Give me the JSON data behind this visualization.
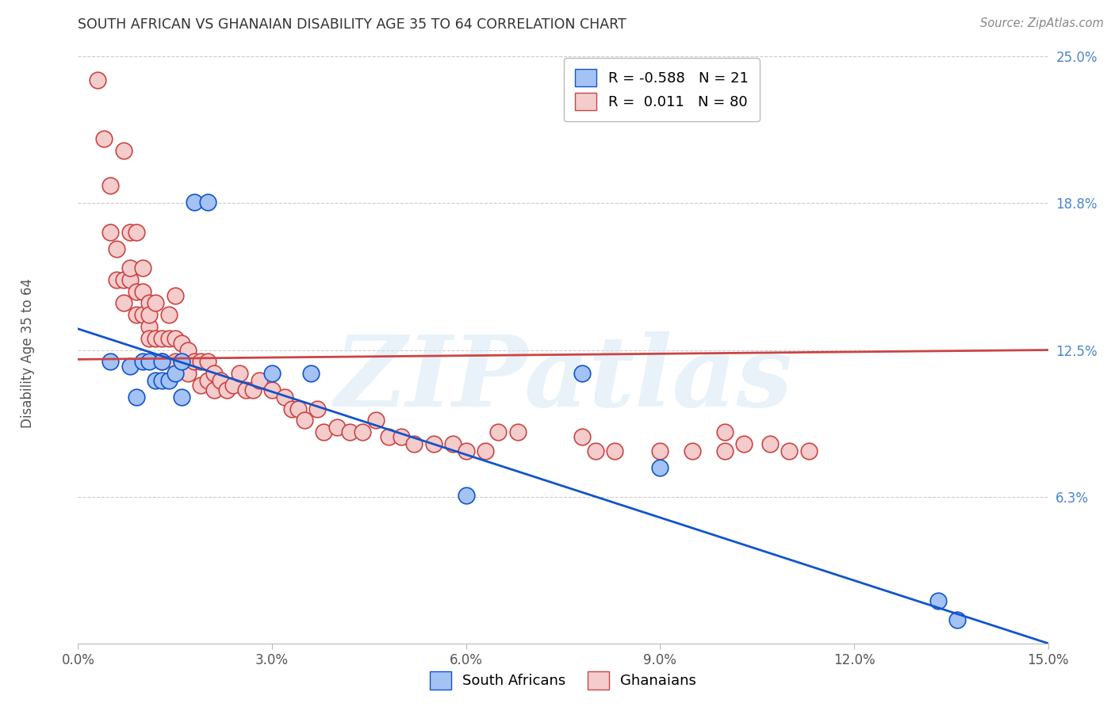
{
  "title": "SOUTH AFRICAN VS GHANAIAN DISABILITY AGE 35 TO 64 CORRELATION CHART",
  "source": "Source: ZipAtlas.com",
  "ylabel": "Disability Age 35 to 64",
  "xlim": [
    0.0,
    0.15
  ],
  "ylim": [
    0.0,
    0.25
  ],
  "xticks": [
    0.0,
    0.03,
    0.06,
    0.09,
    0.12,
    0.15
  ],
  "xticklabels": [
    "0.0%",
    "3.0%",
    "6.0%",
    "9.0%",
    "12.0%",
    "15.0%"
  ],
  "ytick_positions": [
    0.0,
    0.0625,
    0.125,
    0.1875,
    0.25
  ],
  "ytick_labels": [
    "",
    "6.3%",
    "12.5%",
    "18.8%",
    "25.0%"
  ],
  "legend_r_sa": "-0.588",
  "legend_n_sa": "21",
  "legend_r_gh": "0.011",
  "legend_n_gh": "80",
  "sa_color": "#a4c2f4",
  "gh_color": "#f4cccc",
  "sa_line_color": "#1155cc",
  "gh_line_color": "#cc4444",
  "background_color": "#ffffff",
  "grid_color": "#cccccc",
  "watermark": "ZIPatlas",
  "sa_line_x0": 0.0,
  "sa_line_y0": 0.134,
  "sa_line_x1": 0.15,
  "sa_line_y1": 0.0,
  "gh_line_x0": 0.0,
  "gh_line_y0": 0.121,
  "gh_line_x1": 0.15,
  "gh_line_y1": 0.125,
  "sa_points_x": [
    0.005,
    0.008,
    0.009,
    0.01,
    0.011,
    0.012,
    0.013,
    0.013,
    0.014,
    0.015,
    0.016,
    0.016,
    0.018,
    0.02,
    0.03,
    0.036,
    0.06,
    0.078,
    0.09,
    0.133,
    0.136
  ],
  "sa_points_y": [
    0.12,
    0.118,
    0.105,
    0.12,
    0.12,
    0.112,
    0.112,
    0.12,
    0.112,
    0.115,
    0.105,
    0.12,
    0.188,
    0.188,
    0.115,
    0.115,
    0.063,
    0.115,
    0.075,
    0.018,
    0.01
  ],
  "gh_points_x": [
    0.003,
    0.004,
    0.005,
    0.005,
    0.006,
    0.006,
    0.007,
    0.007,
    0.007,
    0.008,
    0.008,
    0.008,
    0.009,
    0.009,
    0.009,
    0.01,
    0.01,
    0.01,
    0.011,
    0.011,
    0.011,
    0.011,
    0.012,
    0.012,
    0.013,
    0.013,
    0.014,
    0.014,
    0.015,
    0.015,
    0.015,
    0.016,
    0.016,
    0.017,
    0.017,
    0.018,
    0.019,
    0.019,
    0.02,
    0.02,
    0.021,
    0.021,
    0.022,
    0.023,
    0.024,
    0.025,
    0.026,
    0.027,
    0.028,
    0.03,
    0.032,
    0.033,
    0.034,
    0.035,
    0.037,
    0.038,
    0.04,
    0.042,
    0.044,
    0.046,
    0.048,
    0.05,
    0.052,
    0.055,
    0.058,
    0.06,
    0.063,
    0.065,
    0.068,
    0.078,
    0.08,
    0.083,
    0.09,
    0.095,
    0.1,
    0.1,
    0.103,
    0.107,
    0.11,
    0.113
  ],
  "gh_points_y": [
    0.24,
    0.215,
    0.195,
    0.175,
    0.168,
    0.155,
    0.21,
    0.155,
    0.145,
    0.155,
    0.175,
    0.16,
    0.15,
    0.14,
    0.175,
    0.15,
    0.16,
    0.14,
    0.145,
    0.135,
    0.14,
    0.13,
    0.13,
    0.145,
    0.13,
    0.12,
    0.14,
    0.13,
    0.148,
    0.13,
    0.12,
    0.128,
    0.12,
    0.115,
    0.125,
    0.12,
    0.12,
    0.11,
    0.12,
    0.112,
    0.115,
    0.108,
    0.112,
    0.108,
    0.11,
    0.115,
    0.108,
    0.108,
    0.112,
    0.108,
    0.105,
    0.1,
    0.1,
    0.095,
    0.1,
    0.09,
    0.092,
    0.09,
    0.09,
    0.095,
    0.088,
    0.088,
    0.085,
    0.085,
    0.085,
    0.082,
    0.082,
    0.09,
    0.09,
    0.088,
    0.082,
    0.082,
    0.082,
    0.082,
    0.082,
    0.09,
    0.085,
    0.085,
    0.082,
    0.082
  ]
}
